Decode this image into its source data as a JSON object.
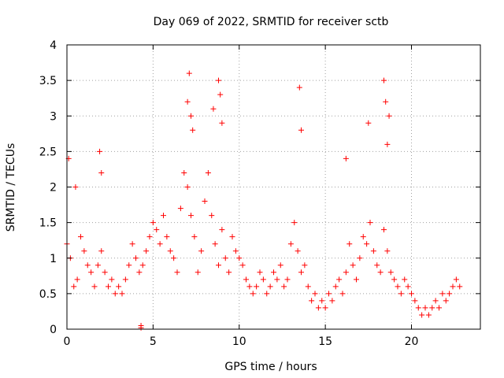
{
  "chart_data": {
    "type": "scatter",
    "title": "Day 069 of 2022, SRMTID for receiver sctb",
    "xlabel": "GPS time / hours",
    "ylabel": "SRMTID / TECUs",
    "xlim": [
      0,
      24
    ],
    "ylim": [
      0,
      4
    ],
    "xticks": [
      0,
      5,
      10,
      15,
      20
    ],
    "xtick_labels": [
      "0",
      "5",
      "10",
      "15",
      "20"
    ],
    "yticks": [
      0,
      0.5,
      1,
      1.5,
      2,
      2.5,
      3,
      3.5,
      4
    ],
    "ytick_labels": [
      "0",
      "0.5",
      "1",
      "1.5",
      "2",
      "2.5",
      "3",
      "3.5",
      "4"
    ],
    "grid": true,
    "marker": "+",
    "color": "#ff0000",
    "series": [
      {
        "name": "SRMTID",
        "x": [
          0.0,
          0.2,
          0.4,
          0.6,
          0.8,
          1.0,
          1.2,
          1.4,
          1.6,
          1.8,
          2.0,
          2.2,
          2.4,
          2.6,
          2.8,
          3.0,
          3.2,
          3.4,
          3.6,
          3.8,
          4.0,
          4.2,
          4.4,
          4.6,
          4.8,
          5.0,
          5.2,
          5.4,
          5.6,
          5.8,
          6.0,
          6.2,
          6.4,
          6.6,
          6.8,
          7.0,
          7.2,
          7.4,
          7.6,
          7.8,
          8.0,
          8.2,
          8.4,
          8.6,
          8.8,
          9.0,
          9.2,
          9.4,
          9.6,
          9.8,
          10.0,
          10.2,
          10.4,
          10.6,
          10.8,
          11.0,
          11.2,
          11.4,
          11.6,
          11.8,
          12.0,
          12.2,
          12.4,
          12.6,
          12.8,
          13.0,
          13.2,
          13.4,
          13.6,
          13.8,
          14.0,
          14.2,
          14.4,
          14.6,
          14.8,
          15.0,
          15.2,
          15.4,
          15.6,
          15.8,
          16.0,
          16.2,
          16.4,
          16.6,
          16.8,
          17.0,
          17.2,
          17.4,
          17.6,
          17.8,
          18.0,
          18.2,
          18.4,
          18.6,
          18.8,
          19.0,
          19.2,
          19.4,
          19.6,
          19.8,
          20.0,
          20.2,
          20.4,
          20.6,
          20.8,
          21.0,
          21.2,
          21.4,
          21.6,
          21.8,
          22.0,
          22.2,
          22.4,
          22.6,
          22.8,
          0.1,
          0.5,
          1.9,
          2.0,
          7.0,
          7.1,
          7.2,
          7.3,
          8.5,
          8.8,
          8.9,
          9.0,
          13.5,
          13.6,
          18.4,
          18.5,
          18.6,
          18.7,
          17.5,
          16.2,
          4.3,
          4.3
        ],
        "y": [
          1.2,
          1.0,
          0.6,
          0.7,
          1.3,
          1.1,
          0.9,
          0.8,
          0.6,
          0.9,
          1.1,
          0.8,
          0.6,
          0.7,
          0.5,
          0.6,
          0.5,
          0.7,
          0.9,
          1.2,
          1.0,
          0.8,
          0.9,
          1.1,
          1.3,
          1.5,
          1.4,
          1.2,
          1.6,
          1.3,
          1.1,
          1.0,
          0.8,
          1.7,
          2.2,
          2.0,
          1.6,
          1.3,
          0.8,
          1.1,
          1.8,
          2.2,
          1.6,
          1.2,
          0.9,
          1.4,
          1.0,
          0.8,
          1.3,
          1.1,
          1.0,
          0.9,
          0.7,
          0.6,
          0.5,
          0.6,
          0.8,
          0.7,
          0.5,
          0.6,
          0.8,
          0.7,
          0.9,
          0.6,
          0.7,
          1.2,
          1.5,
          1.1,
          0.8,
          0.9,
          0.6,
          0.4,
          0.5,
          0.3,
          0.4,
          0.3,
          0.5,
          0.4,
          0.6,
          0.7,
          0.5,
          0.8,
          1.2,
          0.9,
          0.7,
          1.0,
          1.3,
          1.2,
          1.5,
          1.1,
          0.9,
          0.8,
          1.4,
          1.1,
          0.8,
          0.7,
          0.6,
          0.5,
          0.7,
          0.6,
          0.5,
          0.4,
          0.3,
          0.2,
          0.3,
          0.2,
          0.3,
          0.4,
          0.3,
          0.5,
          0.4,
          0.5,
          0.6,
          0.7,
          0.6,
          2.4,
          2.0,
          2.5,
          2.2,
          3.2,
          3.6,
          3.0,
          2.8,
          3.1,
          3.5,
          3.3,
          2.9,
          3.4,
          2.8,
          3.5,
          3.2,
          2.6,
          3.0,
          2.9,
          2.4,
          0.05,
          0.02
        ]
      }
    ]
  }
}
